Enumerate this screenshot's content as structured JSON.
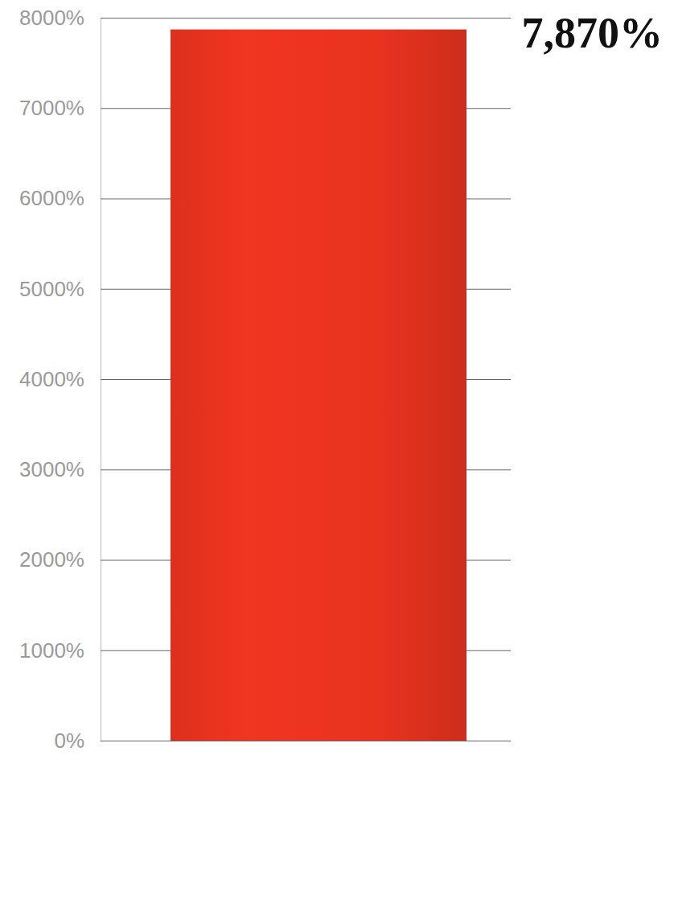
{
  "chart_data": {
    "type": "bar",
    "categories": [
      null
    ],
    "values": [
      7870
    ],
    "value_labels": [
      "7,870%"
    ],
    "color": "#e8331f",
    "ylim": [
      0,
      8000
    ],
    "yticks": [
      {
        "value": 0,
        "label": "0%"
      },
      {
        "value": 1000,
        "label": "1000%"
      },
      {
        "value": 2000,
        "label": "2000%"
      },
      {
        "value": 3000,
        "label": "3000%"
      },
      {
        "value": 4000,
        "label": "4000%"
      },
      {
        "value": 5000,
        "label": "5000%"
      },
      {
        "value": 6000,
        "label": "6000%"
      },
      {
        "value": 7000,
        "label": "7000%"
      },
      {
        "value": 8000,
        "label": "8000%"
      }
    ],
    "grid": true,
    "data_labels": true,
    "tick_labels": "y"
  }
}
